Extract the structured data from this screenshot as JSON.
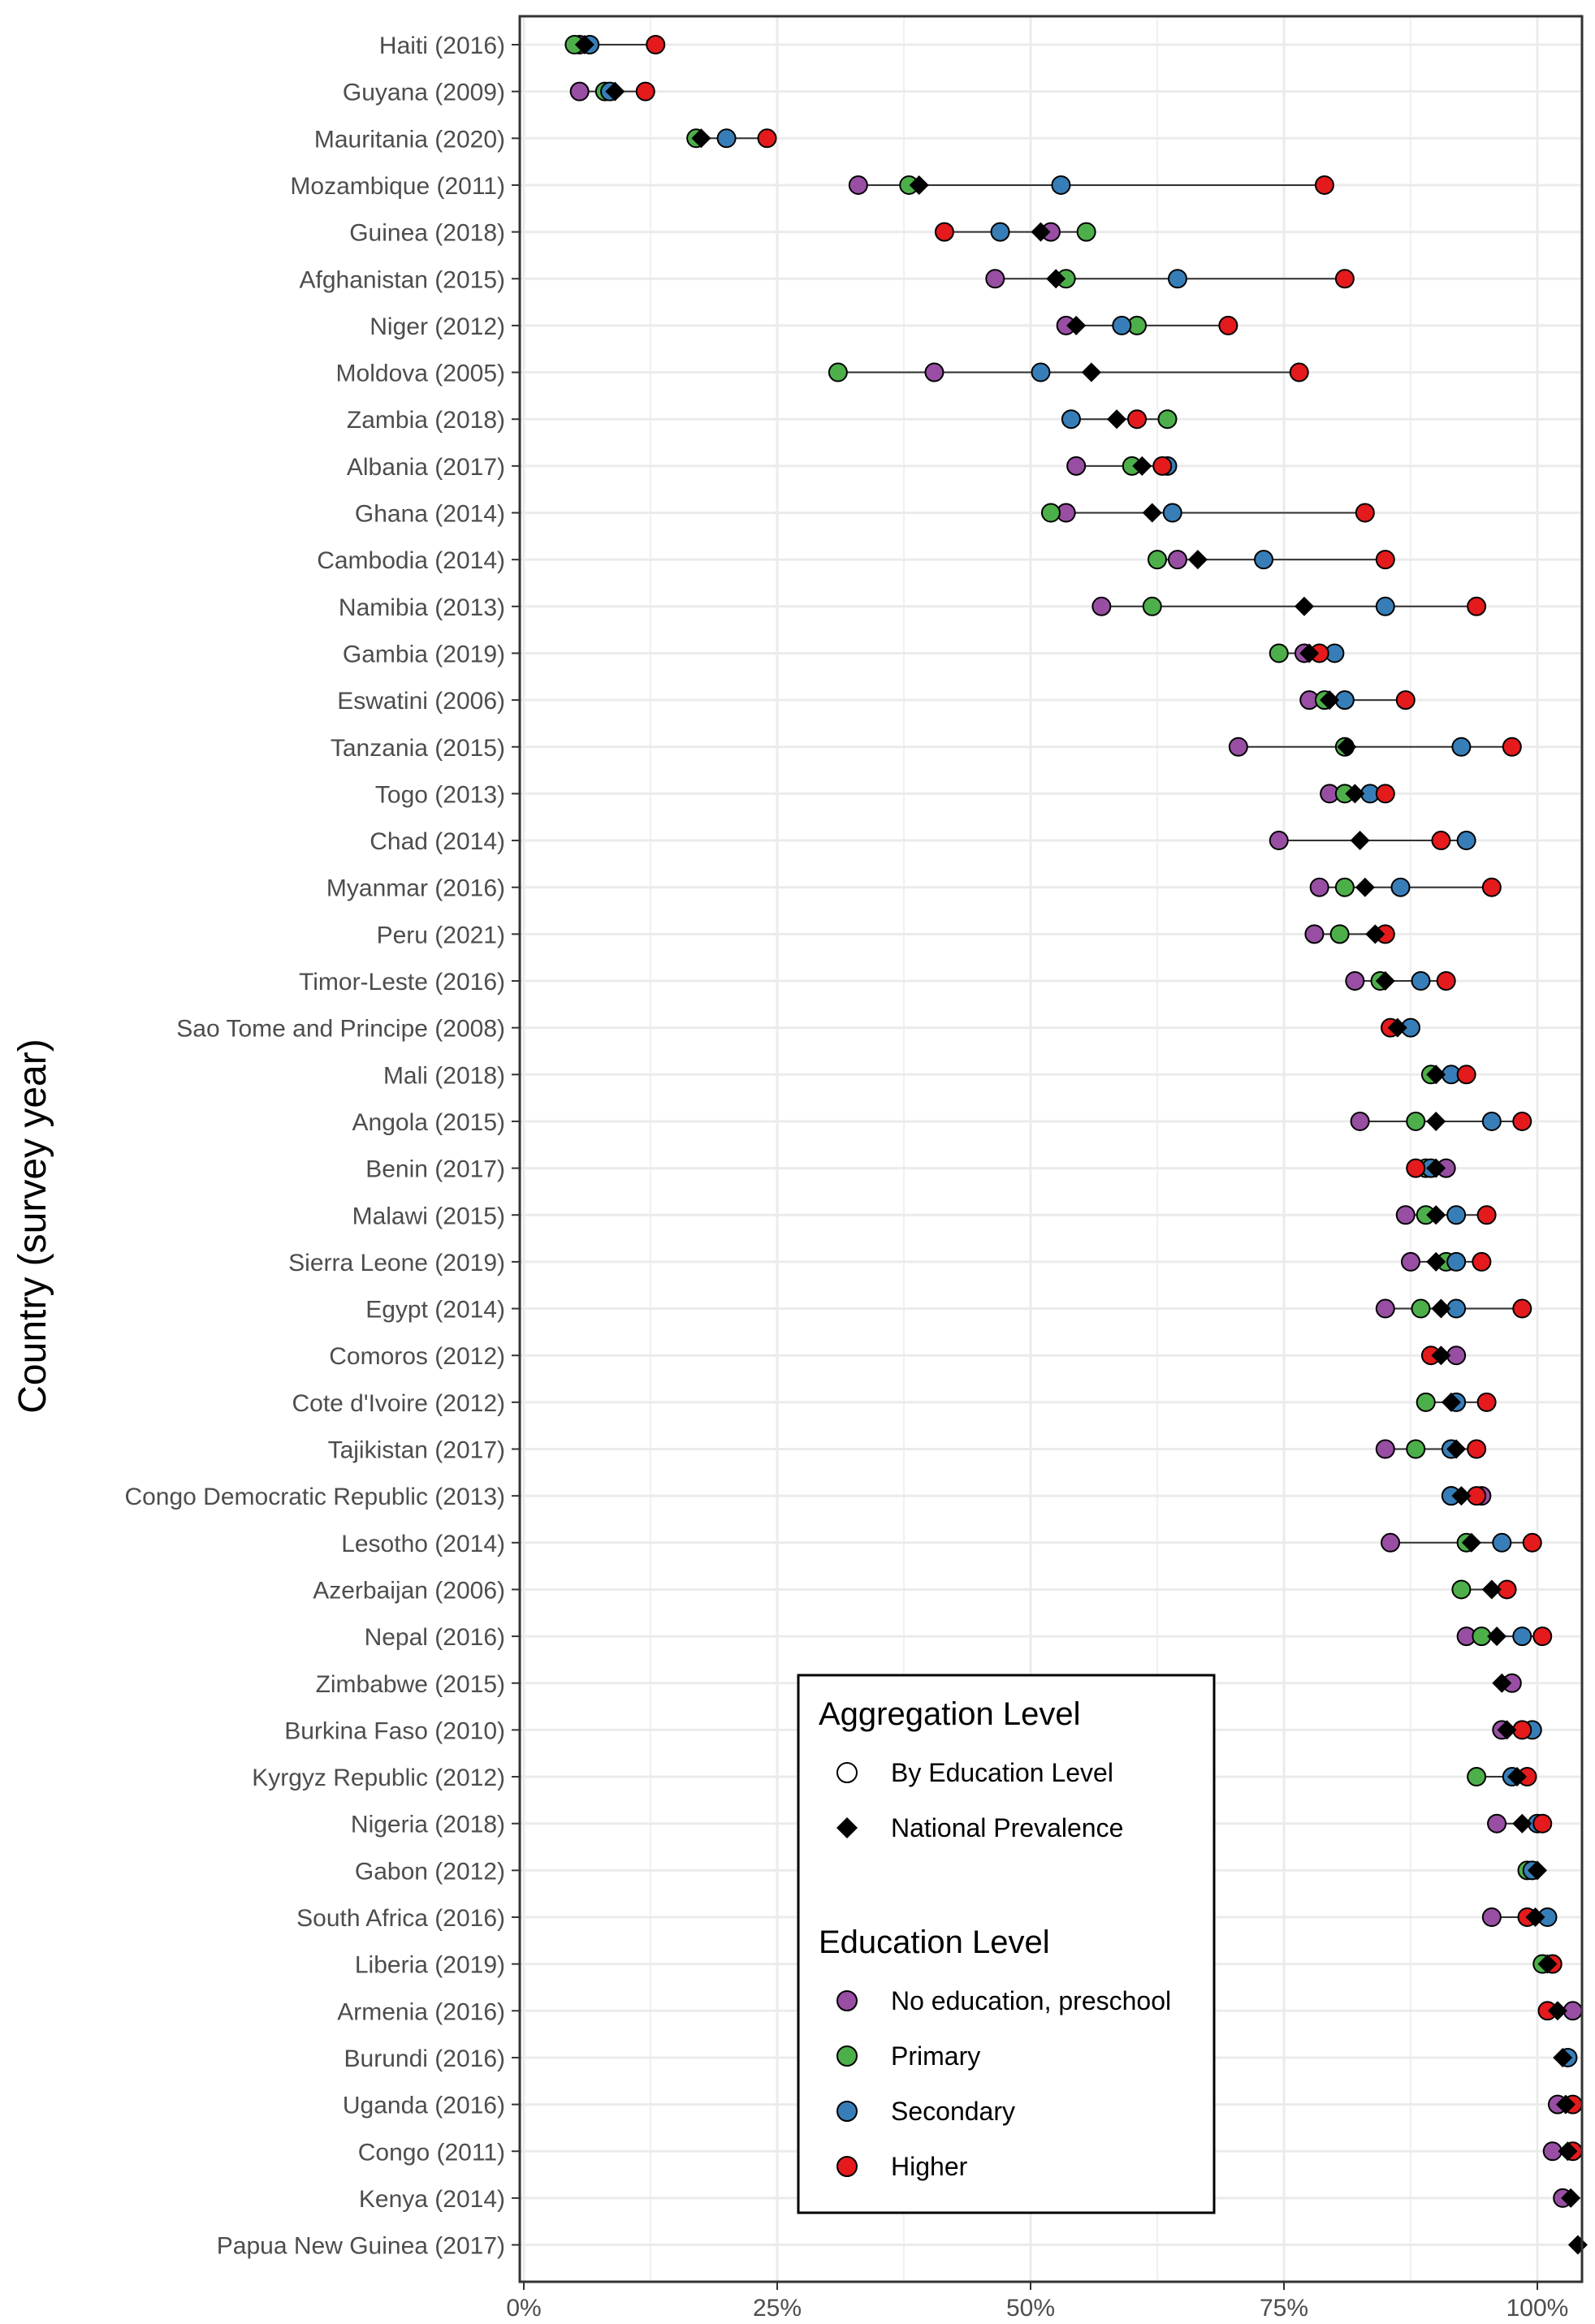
{
  "chart_data": {
    "type": "dot-range",
    "ylabel": "Country (survey year)",
    "xlabel": "",
    "xlim": [
      0,
      1
    ],
    "xticks": [
      0,
      0.25,
      0.5,
      0.75,
      1
    ],
    "xtick_labels": [
      "0%",
      "25%",
      "50%",
      "75%",
      "100%"
    ],
    "grid": true,
    "legend_position": "bottom-center",
    "legend": {
      "aggregation_title": "Aggregation Level",
      "aggregation_items": [
        {
          "label": "By Education Level",
          "shape": "circle"
        },
        {
          "label": "National Prevalence",
          "shape": "diamond"
        }
      ],
      "education_title": "Education Level",
      "education_items": [
        {
          "label": "No education, preschool",
          "key": "none"
        },
        {
          "label": "Primary",
          "key": "primary"
        },
        {
          "label": "Secondary",
          "key": "secondary"
        },
        {
          "label": "Higher",
          "key": "higher"
        }
      ]
    },
    "colors": {
      "none": "#984ea3",
      "primary": "#4daf4a",
      "secondary": "#377eb8",
      "higher": "#e41a1c",
      "national": "#000000",
      "gridline": "#ebebeb",
      "panel_border": "#333333",
      "range_line": "#333333"
    },
    "countries": [
      {
        "label": "Haiti (2016)",
        "none": 0.055,
        "primary": 0.05,
        "secondary": 0.065,
        "higher": 0.13,
        "national": 0.06
      },
      {
        "label": "Guyana (2009)",
        "none": 0.055,
        "primary": 0.08,
        "secondary": 0.085,
        "higher": 0.12,
        "national": 0.09
      },
      {
        "label": "Mauritania (2020)",
        "none": null,
        "primary": 0.17,
        "secondary": 0.2,
        "higher": 0.24,
        "national": 0.175
      },
      {
        "label": "Mozambique (2011)",
        "none": 0.33,
        "primary": 0.38,
        "secondary": 0.53,
        "higher": 0.79,
        "national": 0.39
      },
      {
        "label": "Guinea (2018)",
        "none": 0.52,
        "primary": 0.555,
        "secondary": 0.47,
        "higher": 0.415,
        "national": 0.51
      },
      {
        "label": "Afghanistan (2015)",
        "none": 0.465,
        "primary": 0.535,
        "secondary": 0.645,
        "higher": 0.81,
        "national": 0.525
      },
      {
        "label": "Niger (2012)",
        "none": 0.535,
        "primary": 0.605,
        "secondary": 0.59,
        "higher": 0.695,
        "national": 0.545
      },
      {
        "label": "Moldova (2005)",
        "none": 0.405,
        "primary": 0.31,
        "secondary": 0.51,
        "higher": 0.765,
        "national": 0.56
      },
      {
        "label": "Zambia (2018)",
        "none": null,
        "primary": 0.635,
        "secondary": 0.54,
        "higher": 0.605,
        "national": 0.585
      },
      {
        "label": "Albania (2017)",
        "none": 0.545,
        "primary": 0.6,
        "secondary": 0.635,
        "higher": 0.63,
        "national": 0.61
      },
      {
        "label": "Ghana (2014)",
        "none": 0.535,
        "primary": 0.52,
        "secondary": 0.64,
        "higher": 0.83,
        "national": 0.62
      },
      {
        "label": "Cambodia (2014)",
        "none": 0.645,
        "primary": 0.625,
        "secondary": 0.73,
        "higher": 0.85,
        "national": 0.665
      },
      {
        "label": "Namibia (2013)",
        "none": 0.57,
        "primary": 0.62,
        "secondary": 0.85,
        "higher": 0.94,
        "national": 0.77
      },
      {
        "label": "Gambia (2019)",
        "none": 0.77,
        "primary": 0.745,
        "secondary": 0.8,
        "higher": 0.785,
        "national": 0.775
      },
      {
        "label": "Eswatini (2006)",
        "none": 0.775,
        "primary": 0.79,
        "secondary": 0.81,
        "higher": 0.87,
        "national": 0.795
      },
      {
        "label": "Tanzania (2015)",
        "none": 0.705,
        "primary": 0.81,
        "secondary": 0.925,
        "higher": 0.975,
        "national": 0.812
      },
      {
        "label": "Togo (2013)",
        "none": 0.795,
        "primary": 0.81,
        "secondary": 0.835,
        "higher": 0.85,
        "national": 0.82
      },
      {
        "label": "Chad (2014)",
        "none": 0.745,
        "primary": null,
        "secondary": 0.93,
        "higher": 0.905,
        "national": 0.825
      },
      {
        "label": "Myanmar (2016)",
        "none": 0.785,
        "primary": 0.81,
        "secondary": 0.865,
        "higher": 0.955,
        "national": 0.83
      },
      {
        "label": "Peru (2021)",
        "none": 0.78,
        "primary": 0.805,
        "secondary": null,
        "higher": 0.85,
        "national": 0.84
      },
      {
        "label": "Timor-Leste (2016)",
        "none": 0.82,
        "primary": 0.845,
        "secondary": 0.885,
        "higher": 0.91,
        "national": 0.85
      },
      {
        "label": "Sao Tome and Principe (2008)",
        "none": null,
        "primary": null,
        "secondary": 0.875,
        "higher": 0.855,
        "national": 0.862
      },
      {
        "label": "Mali (2018)",
        "none": null,
        "primary": 0.895,
        "secondary": 0.915,
        "higher": 0.93,
        "national": 0.9
      },
      {
        "label": "Angola (2015)",
        "none": 0.825,
        "primary": 0.88,
        "secondary": 0.955,
        "higher": 0.985,
        "national": 0.9
      },
      {
        "label": "Benin (2017)",
        "none": 0.91,
        "primary": 0.89,
        "secondary": 0.895,
        "higher": 0.88,
        "national": 0.9
      },
      {
        "label": "Malawi (2015)",
        "none": 0.87,
        "primary": 0.89,
        "secondary": 0.92,
        "higher": 0.95,
        "national": 0.9
      },
      {
        "label": "Sierra Leone (2019)",
        "none": 0.875,
        "primary": 0.91,
        "secondary": 0.92,
        "higher": 0.945,
        "national": 0.9
      },
      {
        "label": "Egypt (2014)",
        "none": 0.85,
        "primary": 0.885,
        "secondary": 0.92,
        "higher": 0.985,
        "national": 0.905
      },
      {
        "label": "Comoros (2012)",
        "none": 0.92,
        "primary": null,
        "secondary": null,
        "higher": 0.895,
        "national": 0.905
      },
      {
        "label": "Cote d'Ivoire (2012)",
        "none": null,
        "primary": 0.89,
        "secondary": 0.92,
        "higher": 0.95,
        "national": 0.915
      },
      {
        "label": "Tajikistan (2017)",
        "none": 0.85,
        "primary": 0.88,
        "secondary": 0.915,
        "higher": 0.94,
        "national": 0.92
      },
      {
        "label": "Congo Democratic Republic (2013)",
        "none": 0.945,
        "primary": 0.915,
        "secondary": 0.915,
        "higher": 0.94,
        "national": 0.925
      },
      {
        "label": "Lesotho (2014)",
        "none": 0.855,
        "primary": 0.93,
        "secondary": 0.965,
        "higher": 0.995,
        "national": 0.935
      },
      {
        "label": "Azerbaijan (2006)",
        "none": null,
        "primary": 0.925,
        "secondary": null,
        "higher": 0.97,
        "national": 0.955
      },
      {
        "label": "Nepal (2016)",
        "none": 0.93,
        "primary": 0.945,
        "secondary": 0.985,
        "higher": 1.005,
        "national": 0.96
      },
      {
        "label": "Zimbabwe (2015)",
        "none": 0.975,
        "primary": null,
        "secondary": null,
        "higher": null,
        "national": 0.965
      },
      {
        "label": "Burkina Faso (2010)",
        "none": 0.965,
        "primary": null,
        "secondary": 0.995,
        "higher": 0.985,
        "national": 0.97
      },
      {
        "label": "Kyrgyz Republic (2012)",
        "none": null,
        "primary": 0.94,
        "secondary": 0.975,
        "higher": 0.99,
        "national": 0.98
      },
      {
        "label": "Nigeria (2018)",
        "none": 0.96,
        "primary": null,
        "secondary": 1.0,
        "higher": 1.005,
        "national": 0.985
      },
      {
        "label": "Gabon (2012)",
        "none": null,
        "primary": 0.99,
        "secondary": 0.995,
        "higher": null,
        "national": 1.0
      },
      {
        "label": "South Africa (2016)",
        "none": 0.955,
        "primary": null,
        "secondary": 1.01,
        "higher": 0.99,
        "national": 0.998
      },
      {
        "label": "Liberia (2019)",
        "none": null,
        "primary": 1.005,
        "secondary": null,
        "higher": 1.015,
        "national": 1.01
      },
      {
        "label": "Armenia (2016)",
        "none": 1.035,
        "primary": null,
        "secondary": null,
        "higher": 1.01,
        "national": 1.02
      },
      {
        "label": "Burundi (2016)",
        "none": null,
        "primary": null,
        "secondary": 1.03,
        "higher": null,
        "national": 1.025
      },
      {
        "label": "Uganda (2016)",
        "none": 1.02,
        "primary": null,
        "secondary": null,
        "higher": 1.035,
        "national": 1.028
      },
      {
        "label": "Congo (2011)",
        "none": 1.015,
        "primary": null,
        "secondary": null,
        "higher": 1.035,
        "national": 1.03
      },
      {
        "label": "Kenya (2014)",
        "none": 1.025,
        "primary": null,
        "secondary": null,
        "higher": null,
        "national": 1.033
      },
      {
        "label": "Papua New Guinea (2017)",
        "none": null,
        "primary": null,
        "secondary": null,
        "higher": null,
        "national": 1.04
      }
    ]
  }
}
